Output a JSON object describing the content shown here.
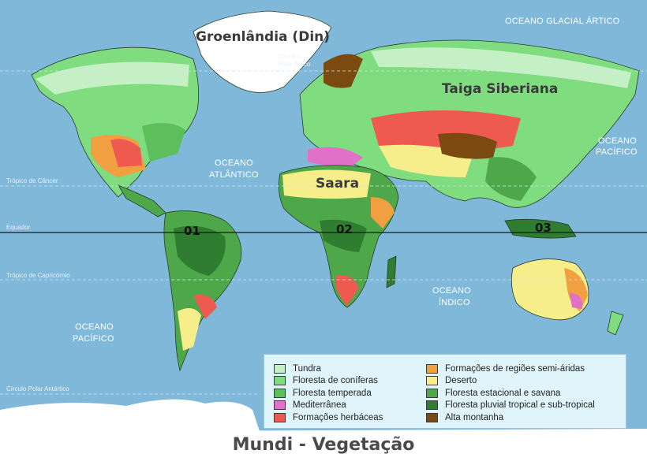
{
  "map": {
    "ocean_color": "#7fb8d8",
    "oceans": [
      {
        "id": "glacial-artico",
        "text": "OCEANO GLACIAL ÁRTICO"
      },
      {
        "id": "pacifico-right-1",
        "text": "OCEANO"
      },
      {
        "id": "pacifico-right-2",
        "text": "PACÍFICO"
      },
      {
        "id": "atlantico-1",
        "text": "OCEANO"
      },
      {
        "id": "atlantico-2",
        "text": "ATLÂNTICO"
      },
      {
        "id": "indico-1",
        "text": "OCEANO"
      },
      {
        "id": "indico-2",
        "text": "ÍNDICO"
      },
      {
        "id": "pacifico-left-1",
        "text": "OCEANO"
      },
      {
        "id": "pacifico-left-2",
        "text": "PACÍFICO"
      }
    ],
    "lines": {
      "circulo_polar_artico_1": "Círculo",
      "circulo_polar_artico_2": "Polar Ártico",
      "tropico_cancer": "Trópico de Câncer",
      "equador": "Equador",
      "tropico_capricornio": "Trópico de Capricórnio",
      "circulo_polar_antartico": "Círculo Polar Antártico"
    },
    "regions": {
      "groenlandia": "Groenlândia (Din)",
      "taiga": "Taiga Siberiana",
      "saara": "Saara"
    },
    "points": {
      "p1": "01",
      "p2": "02",
      "p3": "03"
    }
  },
  "legend": {
    "left": [
      {
        "label": "Tundra",
        "color": "#c5f0c5"
      },
      {
        "label": "Floresta de coníferas",
        "color": "#7fdc7f"
      },
      {
        "label": "Floresta temperada",
        "color": "#5cbf5c"
      },
      {
        "label": "Mediterrânea",
        "color": "#e070c8"
      },
      {
        "label": "Formações herbáceas",
        "color": "#ef5a50"
      }
    ],
    "right": [
      {
        "label": "Formações de regiões semi-áridas",
        "color": "#f0a040"
      },
      {
        "label": "Deserto",
        "color": "#f6ee8a"
      },
      {
        "label": "Floresta estacional e savana",
        "color": "#4ea84a"
      },
      {
        "label": "Floresta pluvial tropical e sub-tropical",
        "color": "#2f7d30"
      },
      {
        "label": "Alta montanha",
        "color": "#7a4a10"
      }
    ]
  },
  "title": "Mundi - Vegetação"
}
